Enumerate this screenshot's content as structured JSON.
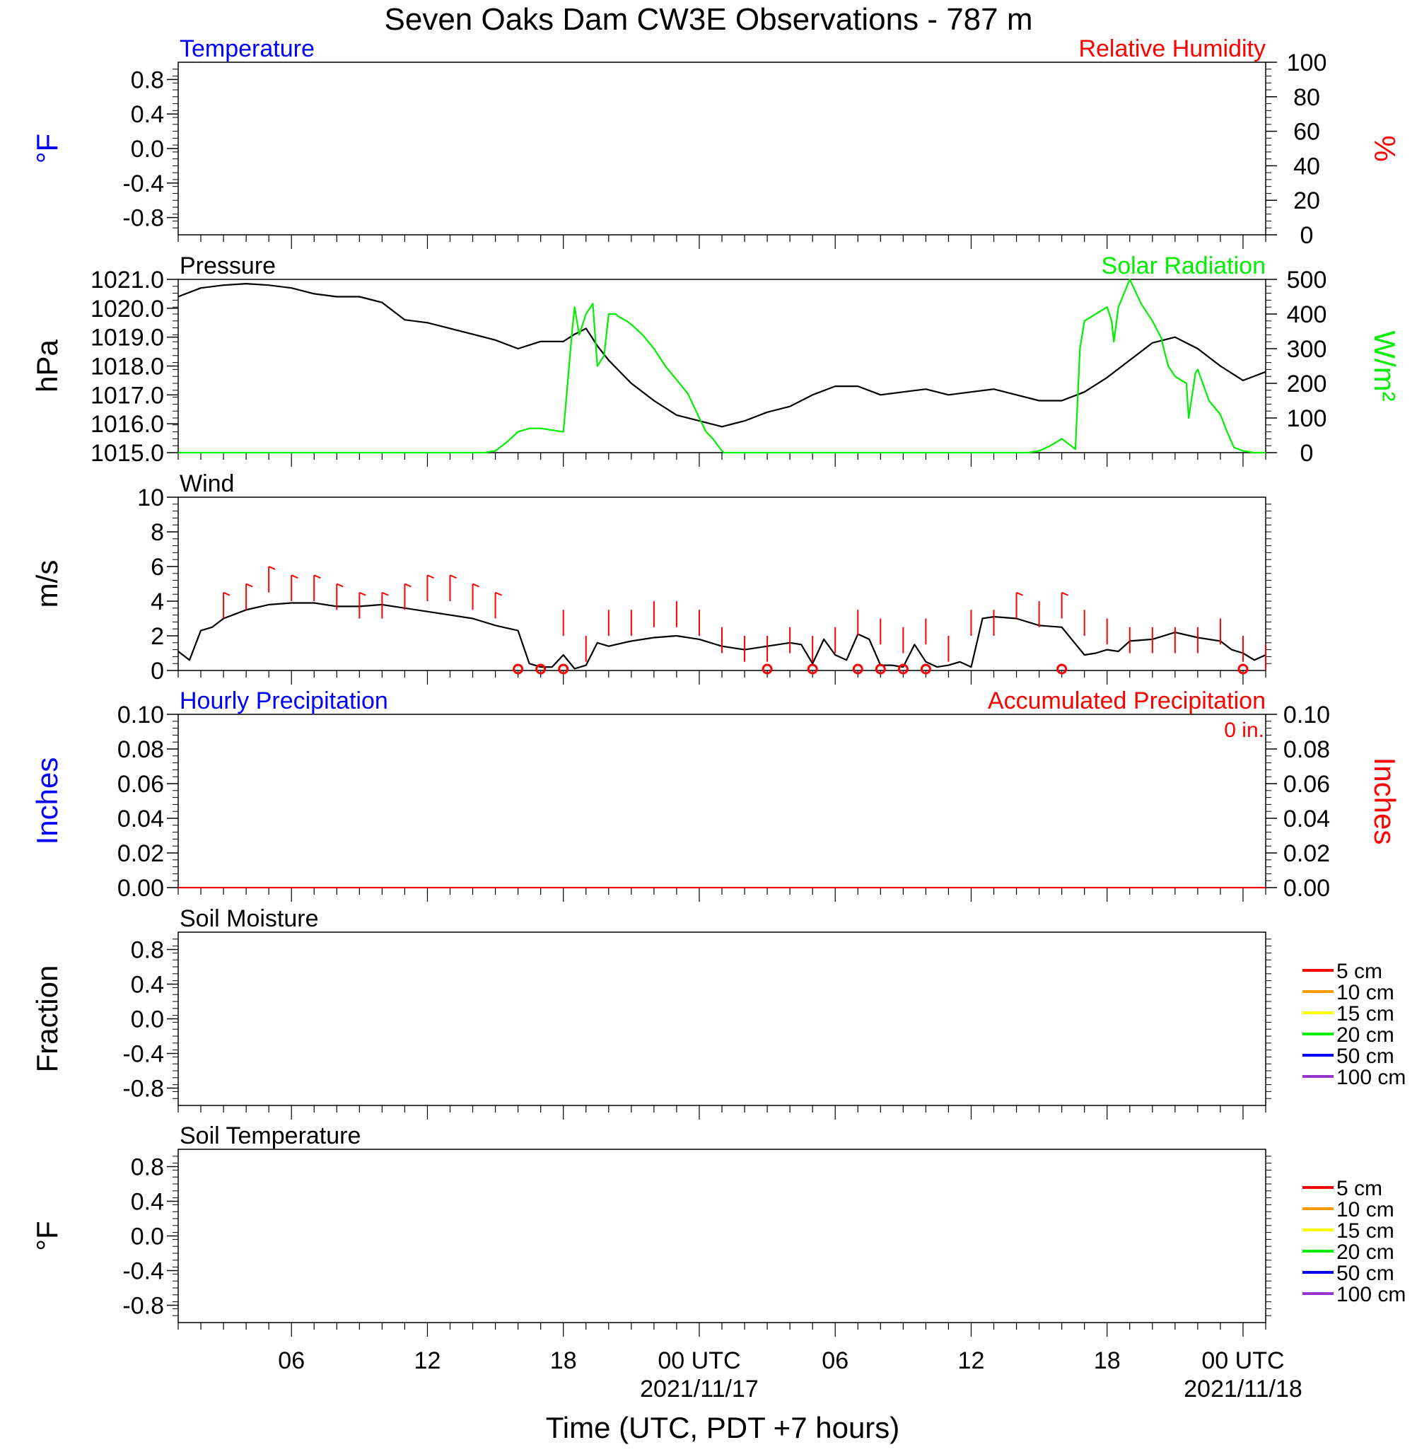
{
  "title": "Seven Oaks Dam CW3E Observations - 787 m",
  "xaxis": {
    "label": "Time (UTC, PDT +7 hours)",
    "start": "2021-11-16T01:00Z",
    "end": "2021-11-18T01:00Z",
    "ticks": [
      {
        "time": "2021-11-16T06:00Z",
        "label": "06",
        "date": ""
      },
      {
        "time": "2021-11-16T12:00Z",
        "label": "12",
        "date": ""
      },
      {
        "time": "2021-11-16T18:00Z",
        "label": "18",
        "date": ""
      },
      {
        "time": "2021-11-17T00:00Z",
        "label": "00 UTC",
        "date": "2021/11/17"
      },
      {
        "time": "2021-11-17T06:00Z",
        "label": "06",
        "date": ""
      },
      {
        "time": "2021-11-17T12:00Z",
        "label": "12",
        "date": ""
      },
      {
        "time": "2021-11-17T18:00Z",
        "label": "18",
        "date": ""
      },
      {
        "time": "2021-11-18T00:00Z",
        "label": "00 UTC",
        "date": "2021/11/18"
      }
    ]
  },
  "chart_data": [
    {
      "type": "line",
      "panel": "temperature",
      "left_title": "Temperature",
      "left_title_color": "#0000ff",
      "right_title": "Relative Humidity",
      "right_title_color": "#ff0000",
      "ylabel_left": "°F",
      "ylabel_left_color": "#0000ff",
      "ylabel_right": "%",
      "ylabel_right_color": "#ff0000",
      "ylim_left": [
        -1.0,
        1.0
      ],
      "left_ticks": [
        "0.8",
        "0.4",
        "0.0",
        "-0.4",
        "-0.8"
      ],
      "left_tick_values": [
        0.8,
        0.4,
        0.0,
        -0.4,
        -0.8
      ],
      "ylim_right": [
        0,
        100
      ],
      "right_ticks": [
        "100",
        "80",
        "60",
        "40",
        "20",
        "0"
      ],
      "right_tick_values": [
        100,
        80,
        60,
        40,
        20,
        0
      ],
      "series": []
    },
    {
      "type": "line",
      "panel": "pressure",
      "left_title": "Pressure",
      "left_title_color": "#000000",
      "right_title": "Solar Radiation",
      "right_title_color": "#00ee00",
      "ylabel_left": "hPa",
      "ylabel_right": "W/m²",
      "ylabel_right_color": "#00ee00",
      "ylim_left": [
        1015.0,
        1021.0
      ],
      "left_ticks": [
        "1021.0",
        "1020.0",
        "1019.0",
        "1018.0",
        "1017.0",
        "1016.0",
        "1015.0"
      ],
      "left_tick_values": [
        1021,
        1020,
        1019,
        1018,
        1017,
        1016,
        1015
      ],
      "ylim_right": [
        0,
        500
      ],
      "right_ticks": [
        "500",
        "400",
        "300",
        "200",
        "100",
        "0"
      ],
      "right_tick_values": [
        500,
        400,
        300,
        200,
        100,
        0
      ],
      "series": [
        {
          "color": "#000000",
          "axis": "left",
          "t": [
            0,
            1,
            2,
            3,
            4,
            5,
            6,
            7,
            8,
            9,
            10,
            11,
            12,
            13,
            14,
            15,
            16,
            17,
            17.5,
            18,
            18.5,
            19,
            20,
            21,
            22,
            23,
            24,
            25,
            26,
            27,
            28,
            29,
            30,
            31,
            32,
            33,
            34,
            35,
            36,
            37,
            38,
            39,
            40,
            41,
            42,
            43,
            44,
            45,
            46,
            47,
            48
          ],
          "values": [
            1020.4,
            1020.7,
            1020.8,
            1020.85,
            1020.8,
            1020.7,
            1020.5,
            1020.4,
            1020.4,
            1020.2,
            1019.6,
            1019.5,
            1019.3,
            1019.1,
            1018.9,
            1018.6,
            1018.85,
            1018.85,
            1019.1,
            1019.3,
            1018.7,
            1018.2,
            1017.4,
            1016.8,
            1016.3,
            1016.1,
            1015.9,
            1016.1,
            1016.4,
            1016.6,
            1017.0,
            1017.3,
            1017.3,
            1017.0,
            1017.1,
            1017.2,
            1017.0,
            1017.1,
            1017.2,
            1017.0,
            1016.8,
            1016.8,
            1017.1,
            1017.6,
            1018.2,
            1018.8,
            1019.0,
            1018.6,
            1018.0,
            1017.5,
            1017.8
          ]
        },
        {
          "color": "#00ee00",
          "axis": "right",
          "t": [
            0,
            13.5,
            14,
            14.5,
            15,
            15.5,
            16,
            16.5,
            17,
            17.05,
            17.4,
            17.5,
            17.7,
            18,
            18.3,
            18.5,
            18.8,
            19,
            19.3,
            19.5,
            19.8,
            20,
            20.5,
            21,
            21.5,
            22,
            22.5,
            23,
            23.3,
            23.6,
            24,
            24.1,
            36,
            37.5,
            38,
            38.5,
            39,
            39.5,
            39.6,
            39.8,
            40,
            41,
            41.2,
            41.3,
            41.5,
            42,
            42.5,
            43,
            43.4,
            43.5,
            43.7,
            44,
            44.5,
            44.6,
            44.9,
            45,
            45.5,
            46,
            46.3,
            46.5,
            46.6,
            47,
            47.5,
            47.9,
            48
          ],
          "values": [
            0,
            0,
            5,
            30,
            60,
            70,
            70,
            65,
            60,
            95,
            360,
            420,
            340,
            400,
            430,
            250,
            280,
            400,
            400,
            390,
            380,
            370,
            340,
            300,
            250,
            210,
            170,
            100,
            60,
            40,
            5,
            0,
            0,
            0,
            5,
            20,
            40,
            15,
            10,
            300,
            380,
            420,
            380,
            320,
            420,
            500,
            430,
            380,
            330,
            300,
            250,
            220,
            200,
            100,
            230,
            240,
            150,
            110,
            60,
            30,
            15,
            5,
            0,
            0,
            0
          ]
        }
      ]
    },
    {
      "type": "line",
      "panel": "wind",
      "left_title": "Wind",
      "left_title_color": "#000000",
      "ylabel_left": "m/s",
      "ylim_left": [
        0,
        10
      ],
      "left_ticks": [
        "10",
        "8",
        "6",
        "4",
        "2",
        "0"
      ],
      "left_tick_values": [
        10,
        8,
        6,
        4,
        2,
        0
      ],
      "series": [
        {
          "name": "",
          "color": "#000000",
          "axis": "left",
          "t": [
            0,
            0.5,
            1,
            1.5,
            2,
            3,
            4,
            5,
            6,
            7,
            8,
            9,
            10,
            11,
            12,
            13,
            14,
            15,
            15.5,
            16,
            16.5,
            17,
            17.5,
            18,
            18.5,
            19,
            20,
            21,
            22,
            23,
            24,
            25,
            26,
            27,
            27.5,
            28,
            28.5,
            29,
            29.5,
            30,
            30.5,
            31,
            31.5,
            32,
            32.5,
            33,
            33.5,
            34,
            34.5,
            35,
            35.5,
            36,
            37,
            38,
            39,
            40,
            40.5,
            41,
            41.5,
            42,
            43,
            44,
            45,
            46,
            46.5,
            47,
            47.5,
            48
          ],
          "values": [
            1.1,
            0.6,
            2.3,
            2.5,
            3.0,
            3.5,
            3.8,
            3.9,
            3.9,
            3.7,
            3.7,
            3.8,
            3.6,
            3.4,
            3.2,
            3.0,
            2.6,
            2.3,
            0.4,
            0.2,
            0.2,
            0.9,
            0.1,
            0.3,
            1.6,
            1.4,
            1.7,
            1.9,
            2.0,
            1.8,
            1.4,
            1.2,
            1.4,
            1.6,
            1.5,
            0.4,
            1.8,
            0.9,
            0.6,
            2.1,
            1.8,
            0.3,
            0.3,
            0.2,
            1.5,
            0.5,
            0.2,
            0.3,
            0.5,
            0.2,
            3.0,
            3.1,
            3.0,
            2.6,
            2.5,
            0.9,
            1.0,
            1.2,
            1.1,
            1.7,
            1.8,
            2.2,
            1.9,
            1.7,
            1.2,
            1.0,
            0.6,
            0.9
          ]
        },
        {
          "name": "",
          "color": "#ff0000",
          "type": "barbs",
          "t": [
            2,
            3,
            4,
            5,
            6,
            7,
            8,
            9,
            10,
            11,
            12,
            13,
            14,
            17,
            18,
            19,
            20,
            21,
            22,
            23,
            24,
            25,
            26,
            27,
            28,
            29,
            30,
            31,
            32,
            33,
            34,
            35,
            36,
            37,
            38,
            39,
            40,
            41,
            42,
            43,
            44,
            45,
            46,
            47,
            48
          ],
          "values": [
            4.5,
            5.0,
            6.0,
            5.5,
            5.5,
            5.0,
            4.5,
            4.5,
            5.0,
            5.5,
            5.5,
            5.0,
            4.5,
            3.5,
            2.0,
            3.5,
            3.5,
            4.0,
            4.0,
            3.5,
            2.5,
            2.0,
            2.0,
            2.5,
            2.0,
            2.5,
            3.5,
            3.0,
            2.5,
            3.0,
            2.0,
            3.5,
            3.5,
            4.5,
            4.0,
            4.5,
            3.5,
            3.0,
            2.5,
            2.5,
            2.5,
            2.5,
            3.0,
            2.0,
            1.5
          ]
        },
        {
          "name": "",
          "color": "#ff0000",
          "type": "calm",
          "t": [
            15,
            16,
            17,
            26,
            28,
            30,
            31,
            32,
            33,
            39,
            47
          ],
          "values": [
            0,
            0,
            0,
            0,
            0,
            0,
            0,
            0,
            0,
            0,
            0
          ]
        }
      ]
    },
    {
      "type": "line",
      "panel": "precipitation",
      "left_title": "Hourly Precipitation",
      "left_title_color": "#0000ff",
      "right_title": "Accumulated Precipitation",
      "right_title_color": "#ff0000",
      "annotation": "0 in.",
      "ylabel_left": "Inches",
      "ylabel_left_color": "#0000ff",
      "ylabel_right": "Inches",
      "ylabel_right_color": "#ff0000",
      "ylim_left": [
        0,
        0.1
      ],
      "left_ticks": [
        "0.10",
        "0.08",
        "0.06",
        "0.04",
        "0.02",
        "0.00"
      ],
      "left_tick_values": [
        0.1,
        0.08,
        0.06,
        0.04,
        0.02,
        0.0
      ],
      "ylim_right": [
        0,
        0.1
      ],
      "right_ticks": [
        "0.10",
        "0.08",
        "0.06",
        "0.04",
        "0.02",
        "0.00"
      ],
      "right_tick_values": [
        0.1,
        0.08,
        0.06,
        0.04,
        0.02,
        0.0
      ],
      "series": [
        {
          "color": "#ff0000",
          "axis": "left",
          "t": [
            0,
            48
          ],
          "values": [
            0,
            0
          ]
        }
      ]
    },
    {
      "type": "line",
      "panel": "soil_moisture",
      "left_title": "Soil Moisture",
      "left_title_color": "#000000",
      "ylabel_left": "Fraction",
      "ylim_left": [
        -1.0,
        1.0
      ],
      "left_ticks": [
        "0.8",
        "0.4",
        "0.0",
        "-0.4",
        "-0.8"
      ],
      "left_tick_values": [
        0.8,
        0.4,
        0.0,
        -0.4,
        -0.8
      ],
      "legend": [
        {
          "name": "5 cm",
          "color": "#ff0000"
        },
        {
          "name": "10 cm",
          "color": "#ff9900"
        },
        {
          "name": "15 cm",
          "color": "#ffff00"
        },
        {
          "name": "20 cm",
          "color": "#00ee00"
        },
        {
          "name": "50 cm",
          "color": "#0000ff"
        },
        {
          "name": "100 cm",
          "color": "#9933cc"
        }
      ],
      "series": []
    },
    {
      "type": "line",
      "panel": "soil_temperature",
      "left_title": "Soil Temperature",
      "left_title_color": "#000000",
      "ylabel_left": "°F",
      "ylim_left": [
        -1.0,
        1.0
      ],
      "left_ticks": [
        "0.8",
        "0.4",
        "0.0",
        "-0.4",
        "-0.8"
      ],
      "left_tick_values": [
        0.8,
        0.4,
        0.0,
        -0.4,
        -0.8
      ],
      "legend": [
        {
          "name": "5 cm",
          "color": "#ff0000"
        },
        {
          "name": "10 cm",
          "color": "#ff9900"
        },
        {
          "name": "15 cm",
          "color": "#ffff00"
        },
        {
          "name": "20 cm",
          "color": "#00ee00"
        },
        {
          "name": "50 cm",
          "color": "#0000ff"
        },
        {
          "name": "100 cm",
          "color": "#9933cc"
        }
      ],
      "series": []
    }
  ]
}
